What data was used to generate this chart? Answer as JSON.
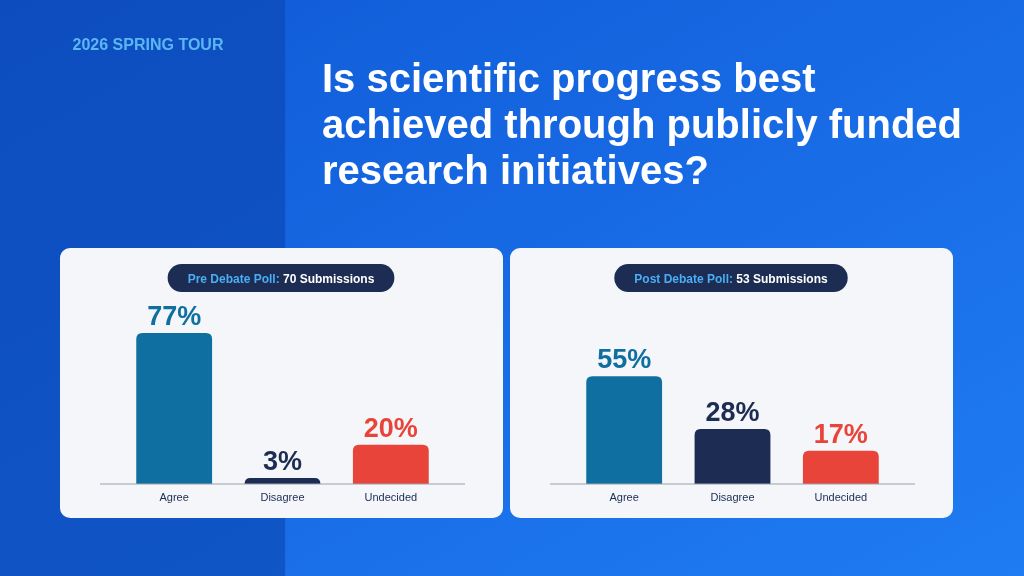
{
  "chart_data": [
    {
      "type": "other",
      "title": "Is scientific progress best achieved through publicly funded research initiatives?",
      "annotations": [
        "2026 SPRING TOUR"
      ]
    },
    {
      "type": "bar",
      "title": "Pre Debate Poll: 70 Submissions",
      "categories": [
        "Agree",
        "Disagree",
        "Undecided"
      ],
      "values": [
        77,
        3,
        20
      ],
      "colors": [
        "#0f6fa0",
        "#1c2c53",
        "#e9443a"
      ],
      "value_labels": [
        "77%",
        "3%",
        "20%"
      ],
      "tick_labels": "x"
    },
    {
      "type": "bar",
      "title": "Post Debate Poll: 53 Submissions",
      "categories": [
        "Agree",
        "Disagree",
        "Undecided"
      ],
      "values": [
        55,
        28,
        17
      ],
      "colors": [
        "#0f6fa0",
        "#1c2c53",
        "#e9443a"
      ],
      "value_labels": [
        "55%",
        "28%",
        "17%"
      ],
      "tick_labels": "x"
    }
  ]
}
